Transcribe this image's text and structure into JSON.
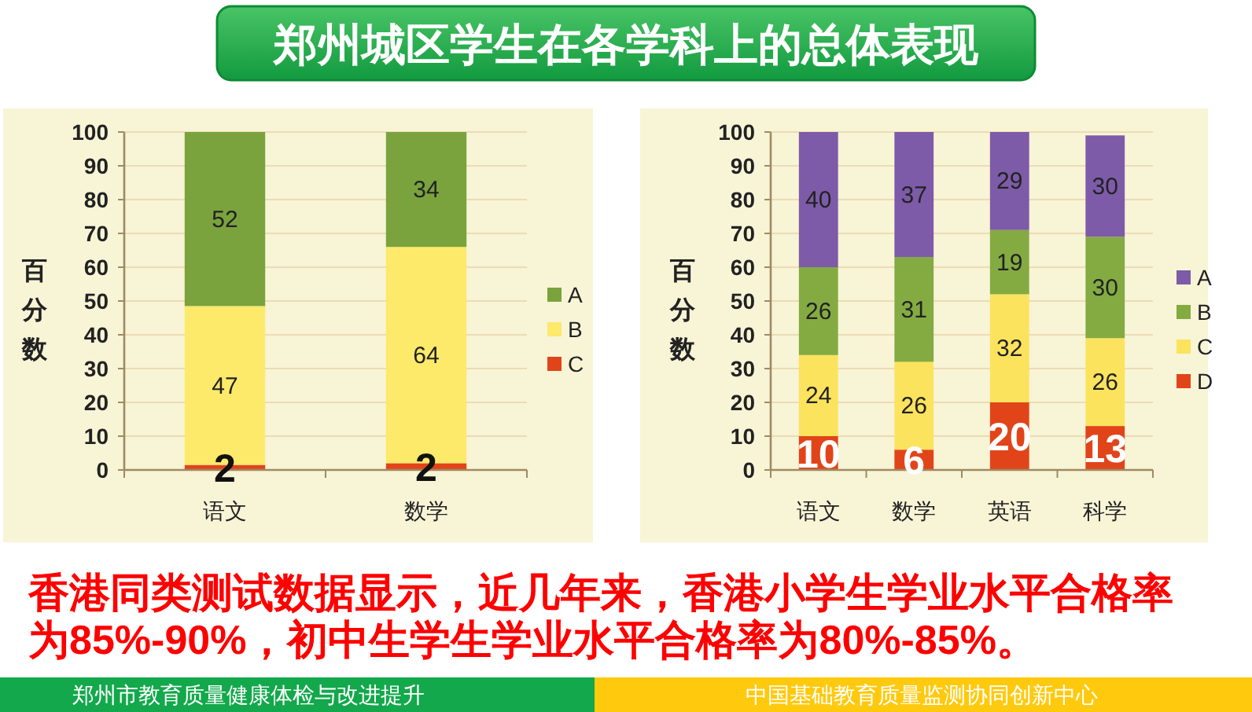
{
  "chart_data": [
    {
      "type": "bar",
      "stacked": true,
      "title": "郑州城区学生在各学科上的总体表现",
      "categories": [
        "语文",
        "数学"
      ],
      "ylabel": "百分数",
      "ylim": [
        0,
        100
      ],
      "yticks": [
        0,
        10,
        20,
        30,
        40,
        50,
        60,
        70,
        80,
        90,
        100
      ],
      "grid": "y",
      "legend": "right",
      "series": [
        {
          "name": "C",
          "color": "#e2441a",
          "values": [
            1.5,
            2
          ],
          "value_labels": [
            "2",
            "2"
          ]
        },
        {
          "name": "B",
          "color": "#fde96a",
          "values": [
            47,
            64
          ],
          "value_labels": [
            "47",
            "64"
          ]
        },
        {
          "name": "A",
          "color": "#7aa33e",
          "values": [
            51.5,
            34
          ],
          "value_labels": [
            "52",
            "34"
          ]
        }
      ],
      "annotations": [
        "香港同类测试数据显示，近几年来，香港小学生学业水平合格率为85%-90%，初中生学生学业水平合格率为80%-85%。",
        "郑州市教育质量健康体检与改进提升",
        "中国基础教育质量监测协同创新中心"
      ]
    },
    {
      "type": "bar",
      "stacked": true,
      "categories": [
        "语文",
        "数学",
        "英语",
        "科学"
      ],
      "ylabel": "百分数",
      "ylim": [
        0,
        100
      ],
      "yticks": [
        0,
        10,
        20,
        30,
        40,
        50,
        60,
        70,
        80,
        90,
        100
      ],
      "grid": "y",
      "legend": "right",
      "data_labels": true,
      "series": [
        {
          "name": "D",
          "color": "#e2441a",
          "values": [
            10,
            6,
            20,
            13
          ]
        },
        {
          "name": "C",
          "color": "#fbe35e",
          "values": [
            24,
            26,
            32,
            26
          ]
        },
        {
          "name": "B",
          "color": "#84ab42",
          "values": [
            26,
            31,
            19,
            30
          ]
        },
        {
          "name": "A",
          "color": "#7d5ba8",
          "values": [
            40,
            37,
            29,
            30
          ]
        }
      ]
    }
  ]
}
